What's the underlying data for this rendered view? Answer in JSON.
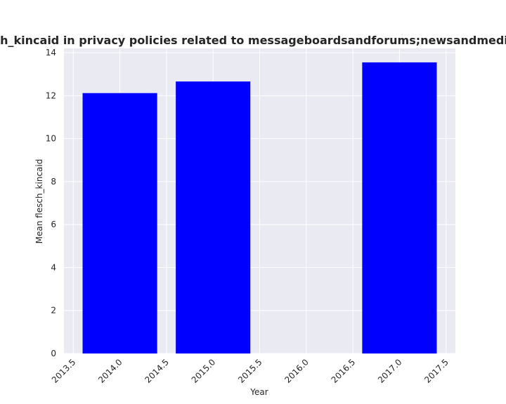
{
  "chart_data": {
    "type": "bar",
    "title": "Mean flesch_kincaid in privacy policies related to messageboardsandforums;newsandmedia categories",
    "xlabel": "Year",
    "ylabel": "Mean flesch_kincaid",
    "x": [
      2014,
      2015,
      2017
    ],
    "values": [
      12.12,
      12.66,
      13.55
    ],
    "bar_width": 0.8,
    "xlim": [
      2013.4,
      2017.6
    ],
    "ylim": [
      0,
      14.2
    ],
    "xticks": [
      "2013.5",
      "2014.0",
      "2014.5",
      "2015.0",
      "2015.5",
      "2016.0",
      "2016.5",
      "2017.0",
      "2017.5"
    ],
    "yticks": [
      "0",
      "2",
      "4",
      "6",
      "8",
      "10",
      "12",
      "14"
    ],
    "grid": true,
    "colors": {
      "bar": "#0000ff",
      "plot_bg": "#eaeaf2",
      "grid": "#ffffff"
    }
  }
}
